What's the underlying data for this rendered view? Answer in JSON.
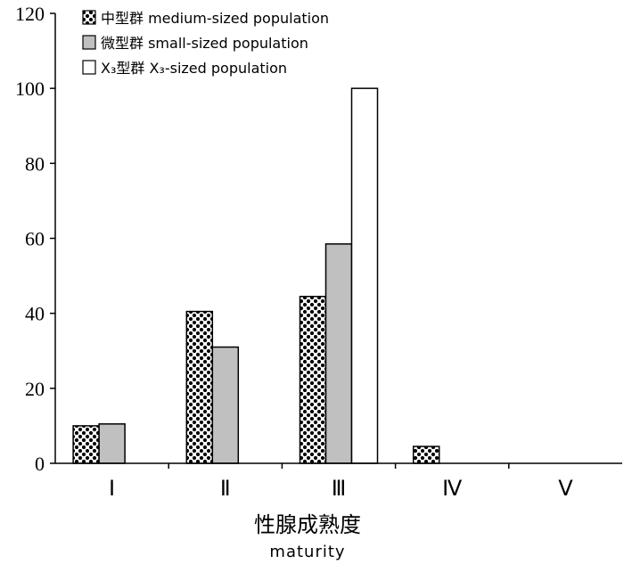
{
  "chart_data": {
    "type": "bar",
    "categories": [
      "Ⅰ",
      "Ⅱ",
      "Ⅲ",
      "Ⅳ",
      "Ⅴ"
    ],
    "series": [
      {
        "name": "中型群 medium-sized population",
        "pattern": "dots",
        "values": [
          10,
          40.5,
          44.5,
          4.5,
          0
        ]
      },
      {
        "name": "微型群 small-sized population",
        "pattern": "gray",
        "fill": "#c0c0c0",
        "values": [
          10.5,
          31,
          58.5,
          0,
          0
        ]
      },
      {
        "name": "X₃型群 X₃-sized population",
        "pattern": "white",
        "fill": "#ffffff",
        "values": [
          0,
          0,
          100,
          0,
          0
        ]
      }
    ],
    "y_ticks": [
      "0",
      "20",
      "40",
      "60",
      "80",
      "100",
      "120"
    ],
    "ylim": [
      0,
      120
    ],
    "xlabel": "性腺成熟度",
    "xlabel_en": "maturity",
    "ylabel": "",
    "legend": {
      "position": "top-left"
    },
    "grid": false
  }
}
